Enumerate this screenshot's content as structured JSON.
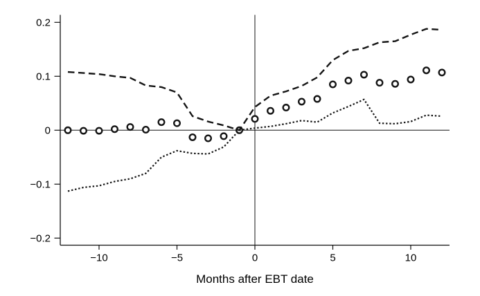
{
  "figure": {
    "background_color": "#ffffff",
    "line_color": "#141414"
  },
  "chart_data": {
    "type": "line",
    "title": "",
    "xlabel": "Months after EBT date",
    "ylabel": "",
    "xlim": [
      -13,
      13
    ],
    "ylim": [
      -0.22,
      0.215
    ],
    "grid": false,
    "legend_position": "none",
    "x_ticks": [
      -10,
      -5,
      0,
      5,
      10
    ],
    "x_tick_labels": [
      "−10",
      "−5",
      "0",
      "5",
      "10"
    ],
    "y_ticks": [
      0.2,
      0.1,
      0,
      -0.1,
      -0.2
    ],
    "y_tick_labels": [
      "0.2",
      "0.1",
      "0",
      "−0.1",
      "−0.2"
    ],
    "reference_lines": {
      "horizontal_y": 0,
      "vertical_x": 0
    },
    "x": [
      -12,
      -11,
      -10,
      -9,
      -8,
      -7,
      -6,
      -5,
      -4,
      -3,
      -2,
      -1,
      0,
      1,
      2,
      3,
      4,
      5,
      6,
      7,
      8,
      9,
      10,
      11,
      12
    ],
    "series": [
      {
        "name": "point-estimate",
        "style": "circle-markers",
        "values": [
          0.0,
          -0.001,
          -0.001,
          0.002,
          0.006,
          0.001,
          0.015,
          0.013,
          -0.013,
          -0.015,
          -0.011,
          0.0,
          0.021,
          0.036,
          0.042,
          0.053,
          0.058,
          0.085,
          0.092,
          0.103,
          0.088,
          0.086,
          0.094,
          0.111,
          0.107
        ]
      },
      {
        "name": "upper-95pct-ci",
        "style": "dashed-line",
        "values": [
          0.108,
          0.106,
          0.104,
          0.1,
          0.097,
          0.083,
          0.08,
          0.07,
          0.026,
          0.016,
          0.009,
          0.0,
          0.043,
          0.064,
          0.072,
          0.082,
          0.098,
          0.13,
          0.147,
          0.152,
          0.163,
          0.165,
          0.177,
          0.188,
          0.186
        ]
      },
      {
        "name": "lower-95pct-ci",
        "style": "dotted-line",
        "values": [
          -0.113,
          -0.106,
          -0.103,
          -0.095,
          -0.09,
          -0.08,
          -0.05,
          -0.038,
          -0.043,
          -0.044,
          -0.031,
          0.0,
          0.004,
          0.007,
          0.012,
          0.018,
          0.015,
          0.032,
          0.044,
          0.057,
          0.013,
          0.012,
          0.016,
          0.028,
          0.026
        ]
      }
    ]
  }
}
